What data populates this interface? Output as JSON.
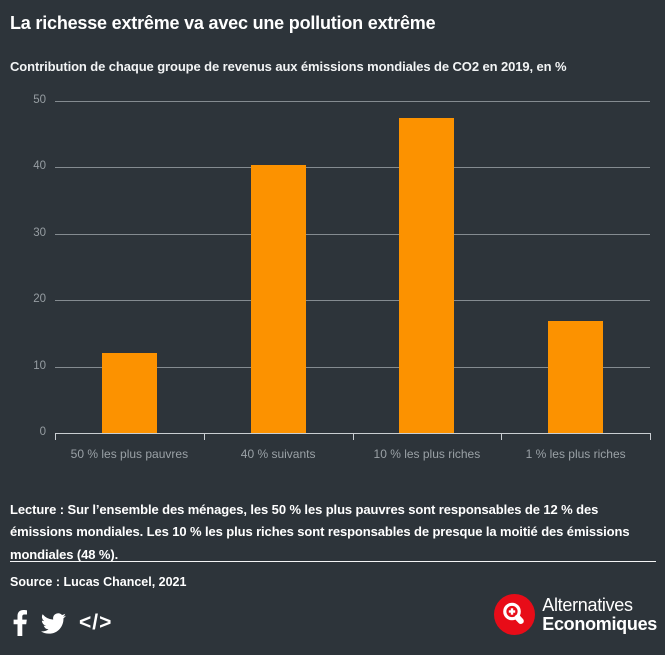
{
  "header": {
    "title": "La richesse extrême va avec une pollution extrême",
    "subtitle": "Contribution de chaque groupe de revenus aux émissions mondiales de CO2 en 2019, en %"
  },
  "chart_data": {
    "type": "bar",
    "title": "La richesse extrême va avec une pollution extrême",
    "subtitle": "Contribution de chaque groupe de revenus aux émissions mondiales de CO2 en 2019, en %",
    "categories": [
      "50 % les plus pauvres",
      "40 % suivants",
      "10 % les plus riches",
      "1 % les plus riches"
    ],
    "values": [
      12,
      40.3,
      47.5,
      16.8
    ],
    "unit": "%",
    "xlabel": "",
    "ylabel": "",
    "ylim": [
      0,
      50
    ],
    "yticks": [
      0,
      10,
      20,
      30,
      40,
      50
    ],
    "grid": true,
    "legend": false,
    "bar_color": "#fc9200"
  },
  "notes": {
    "lecture": "Lecture : Sur l’ensemble des ménages, les 50 % les plus pauvres sont responsables de 12 % des émissions mondiales. Les 10 % les plus riches sont responsables de presque la moitié des émissions mondiales (48 %)."
  },
  "footer": {
    "source": "Source : Lucas Chancel, 2021",
    "share_icons": [
      "facebook-icon",
      "twitter-icon",
      "embed-code-icon"
    ],
    "embed_glyph": "</>",
    "logo": {
      "line1": "Alternatives",
      "line2": "Economiques"
    }
  },
  "colors": {
    "background": "#2d343a",
    "bar": "#fc9200",
    "gridline": "#848b90",
    "axis_line": "#c9ced2",
    "tick_label": "#969da2",
    "category_label": "#9aa1a6",
    "text": "#ffffff",
    "logo_red": "#e80c18"
  }
}
